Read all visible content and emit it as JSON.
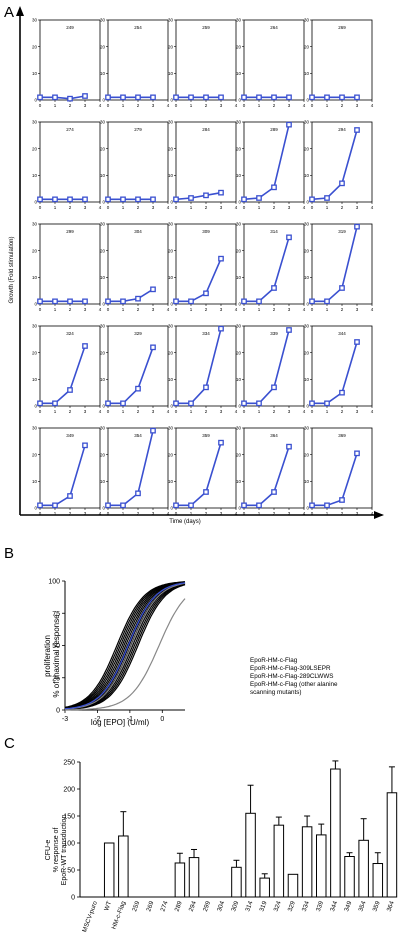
{
  "panels": {
    "a": {
      "letter": "A"
    },
    "b": {
      "letter": "B"
    },
    "c": {
      "letter": "C"
    }
  },
  "chart_data": [
    {
      "type": "line",
      "panel": "A",
      "xlabel": "Time (days)",
      "ylabel": "Growth (Fold stimulation)",
      "x_ticks": [
        0,
        1,
        2,
        3,
        4
      ],
      "y_ticks": [
        0,
        10,
        20,
        30
      ],
      "xlim": [
        0,
        4
      ],
      "ylim": [
        0,
        30
      ],
      "color": "#3a50d0",
      "x": [
        0,
        1,
        2,
        3
      ],
      "subplots": [
        {
          "label": "249",
          "values": [
            1,
            1,
            0.5,
            1.5
          ]
        },
        {
          "label": "254",
          "values": [
            1,
            1,
            1,
            1
          ]
        },
        {
          "label": "259",
          "values": [
            1,
            1,
            1,
            1
          ]
        },
        {
          "label": "264",
          "values": [
            1,
            1,
            1,
            1
          ]
        },
        {
          "label": "269",
          "values": [
            1,
            1,
            1,
            1
          ]
        },
        {
          "label": "274",
          "values": [
            1,
            1,
            1,
            1
          ]
        },
        {
          "label": "279",
          "values": [
            1,
            1,
            1,
            1
          ]
        },
        {
          "label": "284",
          "values": [
            1,
            1.5,
            2.5,
            3.5
          ]
        },
        {
          "label": "289",
          "values": [
            1,
            1.5,
            5.5,
            29
          ]
        },
        {
          "label": "294",
          "values": [
            1,
            1.5,
            7,
            27
          ]
        },
        {
          "label": "299",
          "values": [
            1,
            1,
            1,
            1
          ]
        },
        {
          "label": "304",
          "values": [
            1,
            1,
            2,
            5.5
          ]
        },
        {
          "label": "309",
          "values": [
            1,
            1,
            4,
            17
          ]
        },
        {
          "label": "314",
          "values": [
            1,
            1,
            6,
            25
          ]
        },
        {
          "label": "319",
          "values": [
            1,
            1,
            6,
            29
          ]
        },
        {
          "label": "324",
          "values": [
            1,
            1,
            6,
            22.5
          ]
        },
        {
          "label": "329",
          "values": [
            1,
            1,
            6.5,
            22
          ]
        },
        {
          "label": "334",
          "values": [
            1,
            1,
            7,
            29
          ]
        },
        {
          "label": "339",
          "values": [
            1,
            1,
            7,
            28.5
          ]
        },
        {
          "label": "344",
          "values": [
            1,
            1,
            5,
            24
          ]
        },
        {
          "label": "349",
          "values": [
            1,
            1,
            4.5,
            23.5
          ]
        },
        {
          "label": "354",
          "values": [
            1,
            1,
            5.5,
            29
          ]
        },
        {
          "label": "359",
          "values": [
            1,
            1,
            6,
            24.5
          ]
        },
        {
          "label": "364",
          "values": [
            1,
            1,
            6,
            23
          ]
        },
        {
          "label": "369",
          "values": [
            1,
            1,
            3,
            20.5
          ]
        }
      ]
    },
    {
      "type": "line",
      "panel": "B",
      "xlabel": "log [EPO] (U/ml)",
      "ylabel_lines": [
        "proliferation",
        "% of maximal response"
      ],
      "x_ticks": [
        -3,
        -2,
        -1,
        0
      ],
      "y_ticks": [
        0,
        25,
        50,
        75,
        100
      ],
      "xlim": [
        -3,
        0.7
      ],
      "ylim": [
        0,
        100
      ],
      "series": [
        {
          "name": "EpoR-HM-c-Flag (other alanine scanning mutants)",
          "color": "#000000",
          "ec50_range": [
            -1.4,
            -0.75
          ]
        },
        {
          "name": "EpoR-HM-c-Flag",
          "color": "#3a50d0",
          "ec50": -1.05
        },
        {
          "name": "EpoR-HM-c-Flag-309LSEPR",
          "color": "#888888",
          "ec50": -0.1
        },
        {
          "name": "EpoR-HM-c-Flag-289CLWWS",
          "color": "#888888",
          "ec50": -0.95
        }
      ],
      "legend": [
        {
          "lines": [
            "EpoR-HM-c-Flag"
          ],
          "color": "#3a50d0"
        },
        {
          "lines": [
            "EpoR-HM-c-Flag-309LSEPR"
          ],
          "color": "#888888"
        },
        {
          "lines": [
            "EpoR-HM-c-Flag-289CLWWS"
          ],
          "color": "#888888"
        },
        {
          "lines": [
            "EpoR-HM-c-Flag (other alanine",
            "scanning mutants)"
          ],
          "color": "#000000"
        }
      ]
    },
    {
      "type": "bar",
      "panel": "C",
      "ylabel_lines": [
        "CFU-e",
        "% response of",
        "EpoR-WT transduction"
      ],
      "y_ticks": [
        0,
        50,
        100,
        150,
        200,
        250
      ],
      "ylim": [
        0,
        250
      ],
      "categories": [
        "MSCV-puro",
        "WT",
        "HM-c-Flag",
        "259",
        "269",
        "274",
        "289",
        "294",
        "299",
        "304",
        "309",
        "314",
        "319",
        "324",
        "329",
        "334",
        "339",
        "344",
        "349",
        "354",
        "359",
        "364"
      ],
      "values": [
        0,
        100,
        113,
        0,
        0,
        0,
        63,
        73,
        0,
        0,
        55,
        155,
        35,
        133,
        42,
        130,
        115,
        237,
        75,
        105,
        62,
        193
      ],
      "errors": [
        0,
        0,
        45,
        0,
        0,
        0,
        18,
        15,
        0,
        0,
        13,
        52,
        8,
        15,
        0,
        20,
        20,
        15,
        7,
        40,
        20,
        48
      ]
    }
  ]
}
